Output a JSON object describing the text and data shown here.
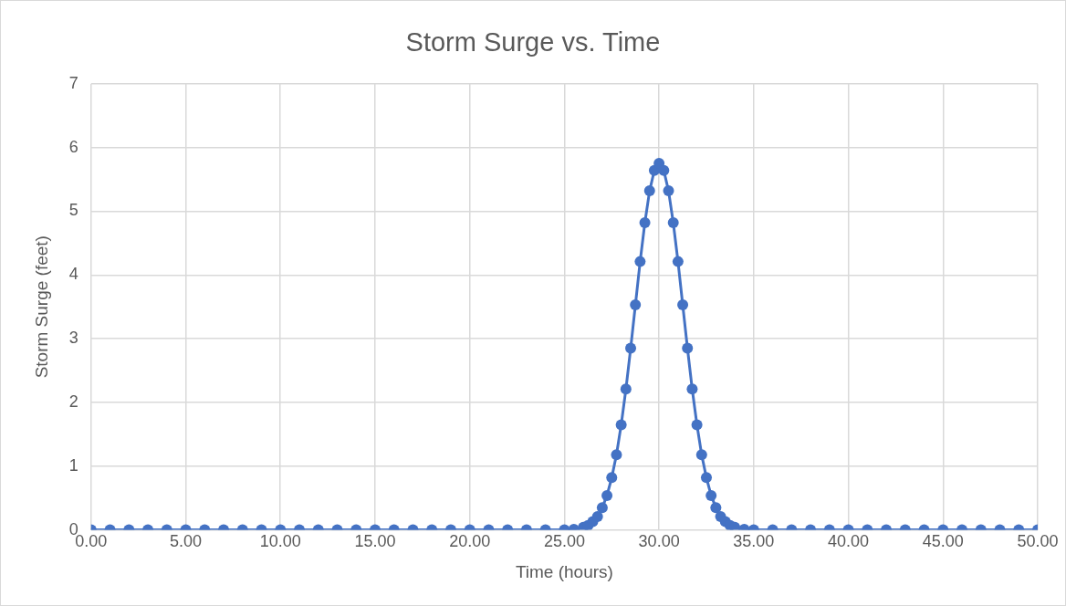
{
  "chart_data": {
    "type": "line",
    "title": "Storm Surge vs. Time",
    "xlabel": "Time (hours)",
    "ylabel": "Storm Surge (feet)",
    "x": [
      0,
      1,
      2,
      3,
      4,
      5,
      6,
      7,
      8,
      9,
      10,
      11,
      12,
      13,
      14,
      15,
      16,
      17,
      18,
      19,
      20,
      21,
      22,
      23,
      24,
      25,
      25.5,
      26,
      26.25,
      26.5,
      26.75,
      27,
      27.25,
      27.5,
      27.75,
      28,
      28.25,
      28.5,
      28.75,
      29,
      29.25,
      29.5,
      29.75,
      30,
      30.25,
      30.5,
      30.75,
      31,
      31.25,
      31.5,
      31.75,
      32,
      32.25,
      32.5,
      32.75,
      33,
      33.25,
      33.5,
      33.75,
      34,
      34.5,
      35,
      36,
      37,
      38,
      39,
      40,
      41,
      42,
      43,
      44,
      45,
      46,
      47,
      48,
      49,
      50
    ],
    "series": [
      {
        "color": "#4472c4",
        "values": [
          0,
          0,
          0,
          0,
          0,
          0,
          0,
          0,
          0,
          0,
          0,
          0,
          0,
          0,
          0,
          0,
          0,
          0,
          0,
          0,
          0,
          0,
          0,
          0,
          0,
          0,
          0.01,
          0.04,
          0.07,
          0.13,
          0.21,
          0.35,
          0.54,
          0.82,
          1.18,
          1.65,
          2.21,
          2.85,
          3.53,
          4.21,
          4.82,
          5.32,
          5.64,
          5.75,
          5.64,
          5.32,
          4.82,
          4.21,
          3.53,
          2.85,
          2.21,
          1.65,
          1.18,
          0.82,
          0.54,
          0.35,
          0.21,
          0.13,
          0.07,
          0.04,
          0.01,
          0,
          0,
          0,
          0,
          0,
          0,
          0,
          0,
          0,
          0,
          0,
          0,
          0,
          0,
          0,
          0
        ]
      }
    ],
    "xlim": [
      0,
      50
    ],
    "xticks": [
      {
        "value": 0,
        "label": "0.00"
      },
      {
        "value": 5,
        "label": "5.00"
      },
      {
        "value": 10,
        "label": "10.00"
      },
      {
        "value": 15,
        "label": "15.00"
      },
      {
        "value": 20,
        "label": "20.00"
      },
      {
        "value": 25,
        "label": "25.00"
      },
      {
        "value": 30,
        "label": "30.00"
      },
      {
        "value": 35,
        "label": "35.00"
      },
      {
        "value": 40,
        "label": "40.00"
      },
      {
        "value": 45,
        "label": "45.00"
      },
      {
        "value": 50,
        "label": "50.00"
      }
    ],
    "ylim": [
      0,
      7
    ],
    "yticks": [
      0,
      1,
      2,
      3,
      4,
      5,
      6,
      7
    ],
    "grid": true,
    "marker": "circle",
    "line_style": "solid",
    "legend": false
  }
}
